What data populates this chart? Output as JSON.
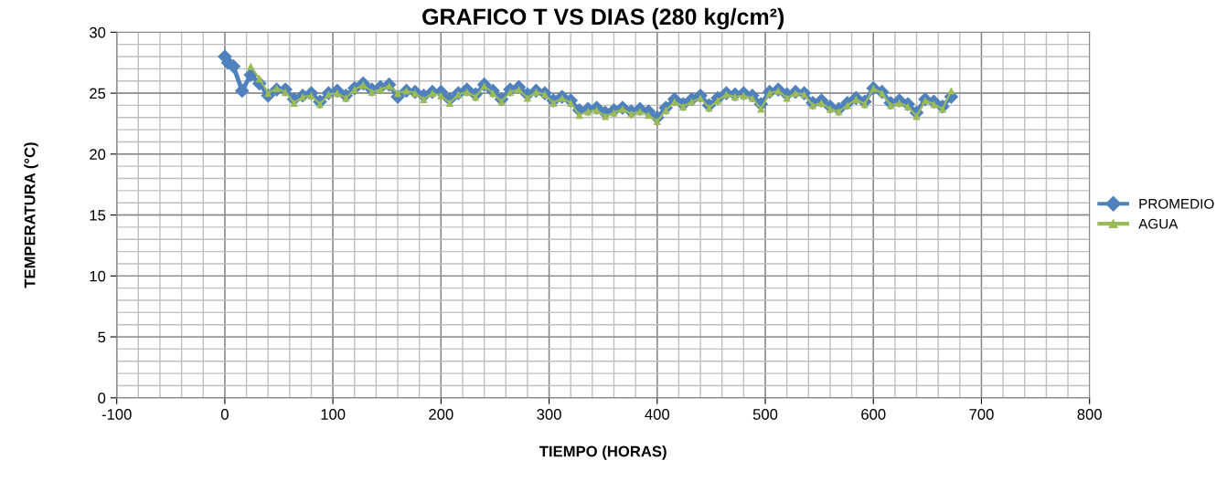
{
  "chart_data": {
    "type": "line",
    "title": "GRAFICO T VS DIAS (280 kg/cm²)",
    "xlabel": "TIEMPO (HORAS)",
    "ylabel": "TEMPERATURA (°C)",
    "xlim": [
      -100,
      800
    ],
    "xticks": [
      -100,
      0,
      100,
      200,
      300,
      400,
      500,
      600,
      700,
      800
    ],
    "ylim": [
      0,
      30
    ],
    "yticks": [
      0,
      5,
      10,
      15,
      20,
      25,
      30
    ],
    "grid": true,
    "legend": "right",
    "series": [
      {
        "name": "PROMEDIO",
        "color": "#4f81bd",
        "marker": "diamond",
        "x": [
          0,
          3,
          8,
          16,
          24,
          32,
          40,
          48,
          56,
          64,
          72,
          80,
          88,
          96,
          104,
          112,
          120,
          128,
          136,
          144,
          152,
          160,
          168,
          176,
          184,
          192,
          200,
          208,
          216,
          224,
          232,
          240,
          248,
          256,
          264,
          272,
          280,
          288,
          296,
          304,
          312,
          320,
          328,
          336,
          344,
          352,
          360,
          368,
          376,
          384,
          392,
          400,
          408,
          416,
          424,
          432,
          440,
          448,
          456,
          464,
          472,
          480,
          488,
          496,
          504,
          512,
          520,
          528,
          536,
          544,
          552,
          560,
          568,
          576,
          584,
          592,
          600,
          608,
          616,
          624,
          632,
          640,
          648,
          656,
          664,
          672
        ],
        "values": [
          28.0,
          27.5,
          27.2,
          25.2,
          26.5,
          25.8,
          24.8,
          25.3,
          25.3,
          24.5,
          24.8,
          25.0,
          24.3,
          25.0,
          25.2,
          24.8,
          25.4,
          25.8,
          25.3,
          25.5,
          25.7,
          24.7,
          25.2,
          25.1,
          24.8,
          25.1,
          25.1,
          24.5,
          25.0,
          25.3,
          24.9,
          25.7,
          25.2,
          24.5,
          25.3,
          25.5,
          24.9,
          25.2,
          25.0,
          24.4,
          24.7,
          24.4,
          23.6,
          23.7,
          23.8,
          23.4,
          23.6,
          23.8,
          23.5,
          23.7,
          23.5,
          23.0,
          23.8,
          24.5,
          24.1,
          24.5,
          24.8,
          24.0,
          24.6,
          25.0,
          24.9,
          25.0,
          24.8,
          24.1,
          25.1,
          25.3,
          24.9,
          25.1,
          25.0,
          24.2,
          24.4,
          23.9,
          23.7,
          24.2,
          24.6,
          24.3,
          25.4,
          25.1,
          24.2,
          24.4,
          24.1,
          23.4,
          24.5,
          24.3,
          23.9,
          24.7
        ]
      },
      {
        "name": "AGUA",
        "color": "#9bbb59",
        "marker": "triangle",
        "x": [
          24,
          32,
          40,
          48,
          56,
          64,
          72,
          80,
          88,
          96,
          104,
          112,
          120,
          128,
          136,
          144,
          152,
          160,
          168,
          176,
          184,
          192,
          200,
          208,
          216,
          224,
          232,
          240,
          248,
          256,
          264,
          272,
          280,
          288,
          296,
          304,
          312,
          320,
          328,
          336,
          344,
          352,
          360,
          368,
          376,
          384,
          392,
          400,
          408,
          416,
          424,
          432,
          440,
          448,
          456,
          464,
          472,
          480,
          488,
          496,
          504,
          512,
          520,
          528,
          536,
          544,
          552,
          560,
          568,
          576,
          584,
          592,
          600,
          608,
          616,
          624,
          632,
          640,
          648,
          656,
          664,
          672
        ],
        "values": [
          27.2,
          26.2,
          25.0,
          25.4,
          25.1,
          24.2,
          24.7,
          24.8,
          24.1,
          24.9,
          25.0,
          24.6,
          25.3,
          25.7,
          25.1,
          25.3,
          25.6,
          25.0,
          25.2,
          25.0,
          24.5,
          25.0,
          24.8,
          24.2,
          24.9,
          25.1,
          24.7,
          25.6,
          25.0,
          24.3,
          25.1,
          25.3,
          24.6,
          25.1,
          24.9,
          24.2,
          24.6,
          24.2,
          23.2,
          23.5,
          23.6,
          23.1,
          23.4,
          23.7,
          23.3,
          23.5,
          23.2,
          22.7,
          23.6,
          24.3,
          23.9,
          24.3,
          24.6,
          23.8,
          24.4,
          24.9,
          24.7,
          24.8,
          24.6,
          23.7,
          25.0,
          25.2,
          24.6,
          25.0,
          24.9,
          24.0,
          24.2,
          23.7,
          23.5,
          24.0,
          24.5,
          24.1,
          25.4,
          25.0,
          24.0,
          24.2,
          23.9,
          23.1,
          24.4,
          24.1,
          23.7,
          25.2
        ]
      }
    ]
  }
}
